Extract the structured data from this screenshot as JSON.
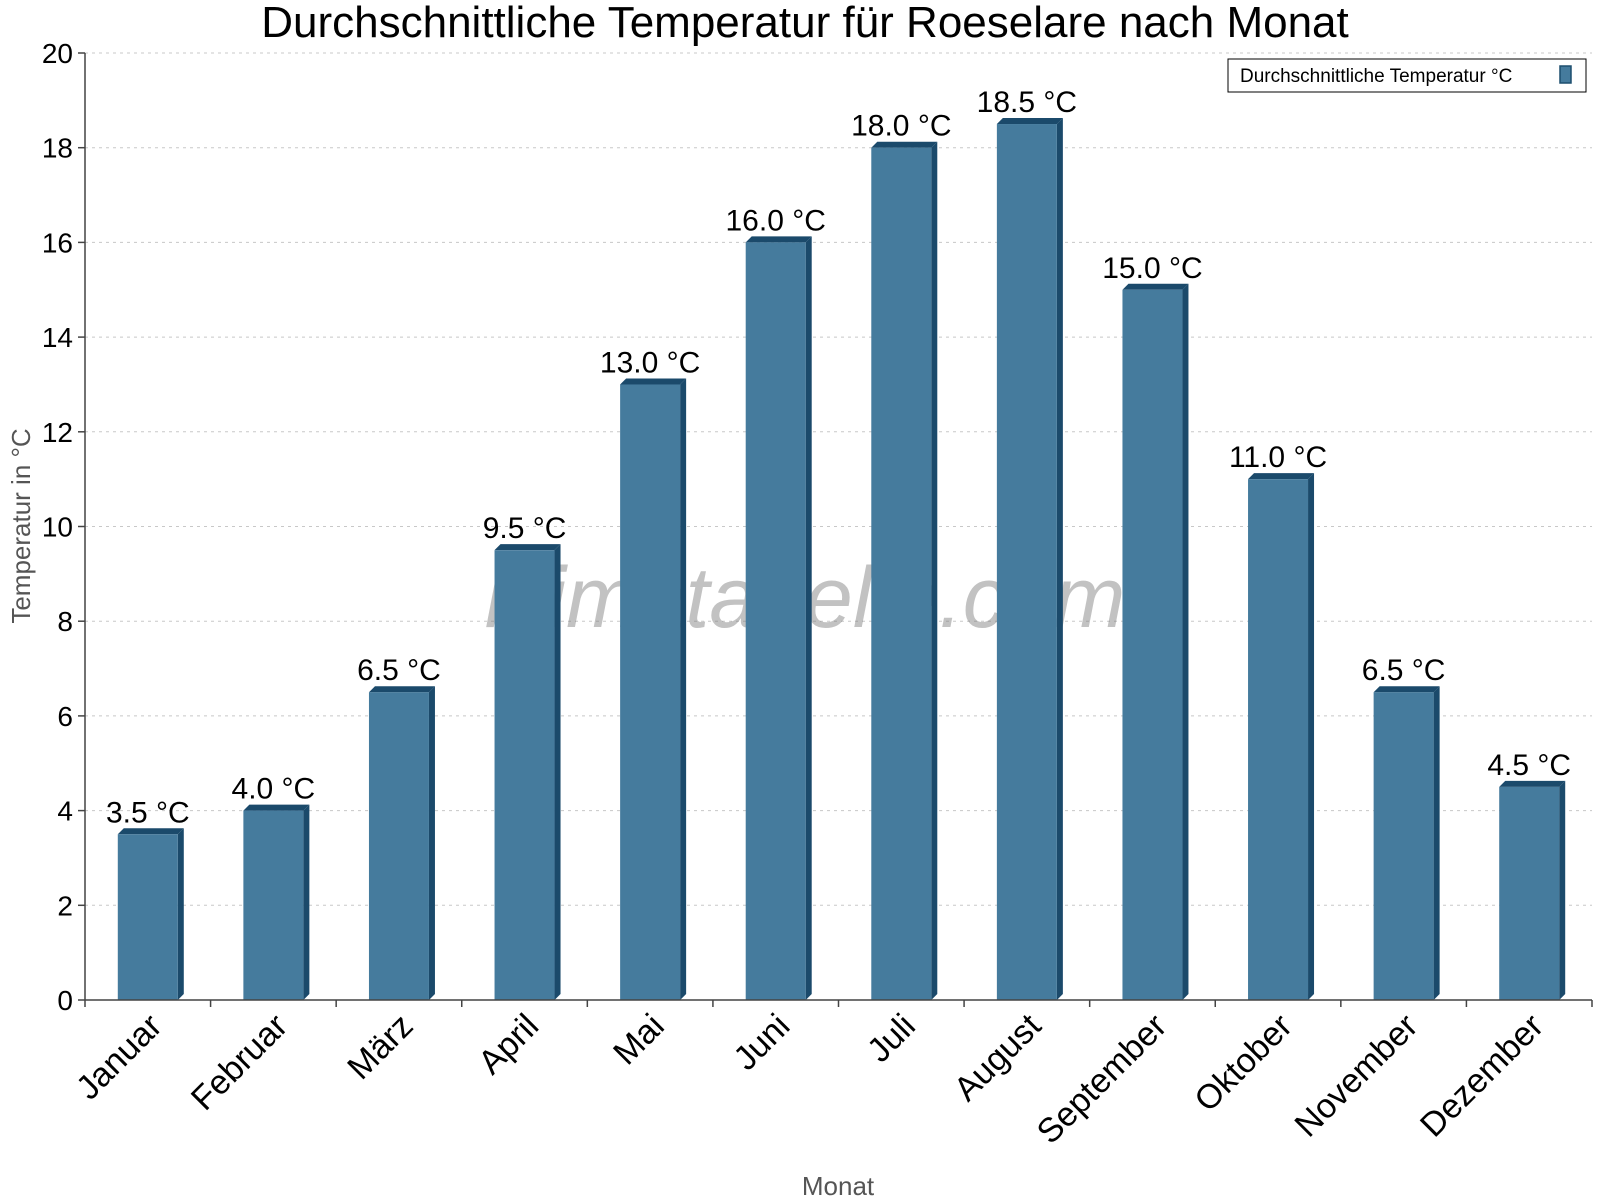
{
  "chart_data": {
    "type": "bar",
    "title": "Durchschnittliche Temperatur für Roeselare nach Monat",
    "xlabel": "Monat",
    "ylabel": "Temperatur in °C",
    "ylim": [
      0,
      20
    ],
    "yticks": [
      "0",
      "2",
      "4",
      "6",
      "8",
      "10",
      "12",
      "14",
      "16",
      "18",
      "20"
    ],
    "grid": true,
    "legend_position": "top-right",
    "categories": [
      "Januar",
      "Februar",
      "März",
      "April",
      "Mai",
      "Juni",
      "Juli",
      "August",
      "September",
      "Oktober",
      "November",
      "Dezember"
    ],
    "series": [
      {
        "name": "Durchschnittliche Temperatur °C",
        "color": "#457b9d",
        "values": [
          3.5,
          4.0,
          6.5,
          9.5,
          13.0,
          16.0,
          18.0,
          18.5,
          15.0,
          11.0,
          6.5,
          4.5
        ],
        "labels": [
          "3.5 °C",
          "4.0 °C",
          "6.5 °C",
          "9.5 °C",
          "13.0 °C",
          "16.0 °C",
          "18.0 °C",
          "18.5 °C",
          "15.0 °C",
          "11.0 °C",
          "6.5 °C",
          "4.5 °C"
        ]
      }
    ],
    "watermark": "klimatabelle.com"
  }
}
